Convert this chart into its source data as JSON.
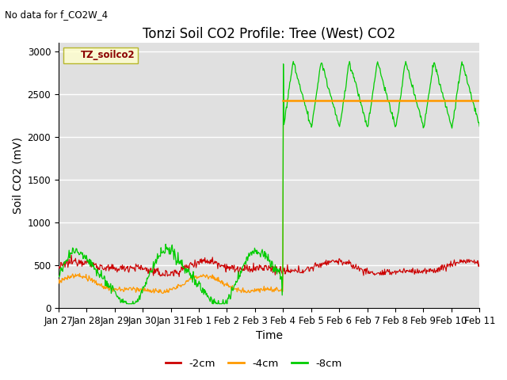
{
  "title": "Tonzi Soil CO2 Profile: Tree (West) CO2",
  "top_left_note": "No data for f_CO2W_4",
  "xlabel": "Time",
  "ylabel": "Soil CO2 (mV)",
  "ylim": [
    0,
    3100
  ],
  "yticks": [
    0,
    500,
    1000,
    1500,
    2000,
    2500,
    3000
  ],
  "legend_label": "TZ_soilco2",
  "bg_color": "#e0e0e0",
  "line_2cm_color": "#cc0000",
  "line_4cm_color": "#ff9900",
  "line_8cm_color": "#00cc00",
  "horizontal_line_color": "#ff9900",
  "horizontal_line_value": 2420,
  "title_fontsize": 12,
  "axis_fontsize": 10,
  "tick_fontsize": 8.5,
  "n_days": 15,
  "transition_day": 8,
  "green_late_cycles": 7,
  "green_late_min": 2100,
  "green_late_max": 2880,
  "green_early_min": 50,
  "green_early_max": 820
}
